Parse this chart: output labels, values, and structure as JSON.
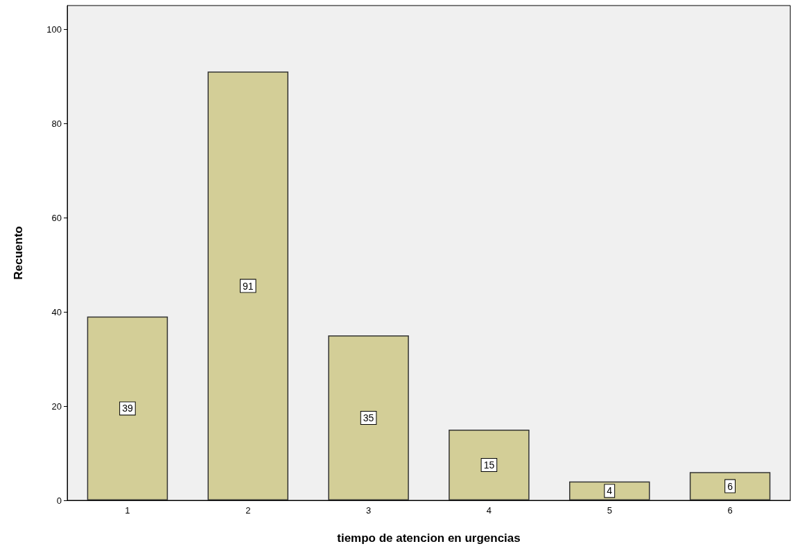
{
  "chart_data": {
    "type": "bar",
    "xlabel": "tiempo de atencion en urgencias",
    "ylabel": "Recuento",
    "categories": [
      "1",
      "2",
      "3",
      "4",
      "5",
      "6"
    ],
    "values": [
      39,
      91,
      35,
      15,
      4,
      6
    ],
    "color": "#d3ce97",
    "ylim": [
      0,
      105
    ],
    "yticks": [
      0,
      20,
      40,
      60,
      80,
      100
    ],
    "grid": false,
    "data_labels": true
  }
}
